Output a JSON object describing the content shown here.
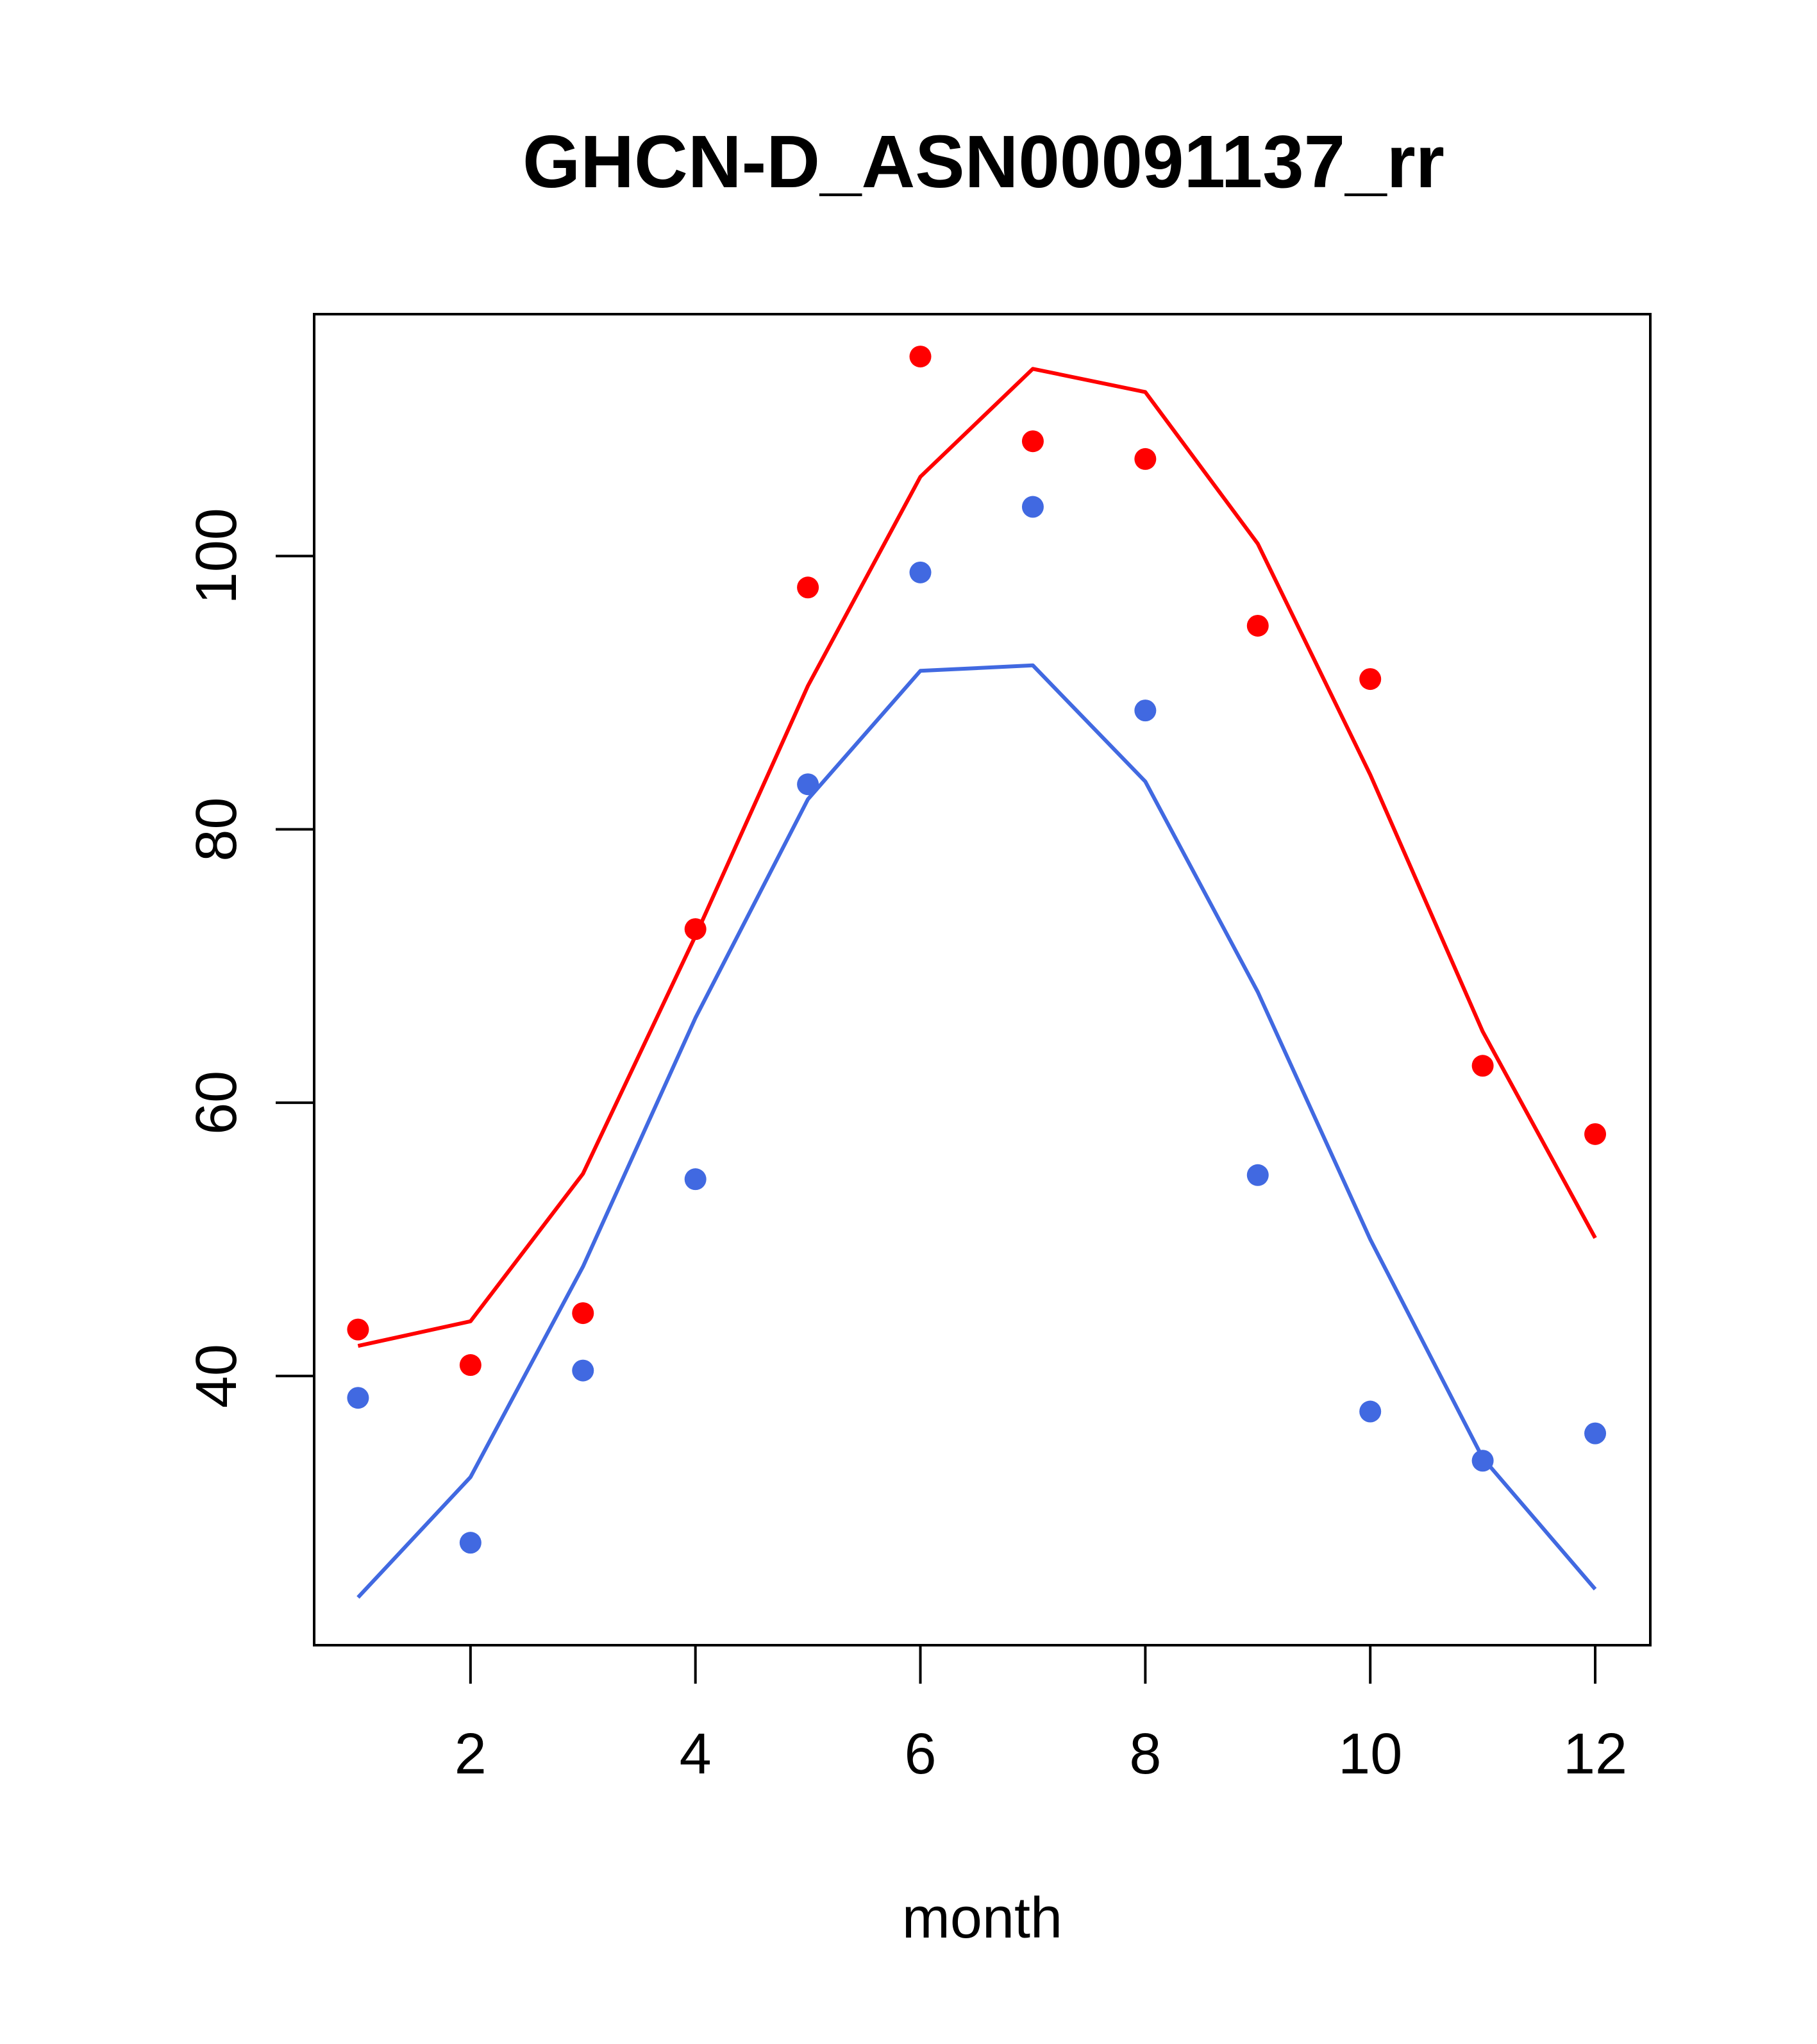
{
  "chart_data": {
    "type": "line",
    "title": "GHCN-D_ASN00091137_rr",
    "xlabel": "month",
    "ylabel": "",
    "xlim": [
      0.61,
      12.49
    ],
    "ylim": [
      20.3,
      117.7
    ],
    "xticks": [
      2,
      4,
      6,
      8,
      10,
      12
    ],
    "yticks": [
      40,
      60,
      80,
      100
    ],
    "x": [
      1,
      2,
      3,
      4,
      5,
      6,
      7,
      8,
      9,
      10,
      11,
      12
    ],
    "series": [
      {
        "color": "#FF0000",
        "line": [
          42.2,
          44.0,
          54.8,
          72.2,
          90.5,
          105.8,
          113.7,
          112.0,
          100.9,
          84.0,
          65.2,
          50.1
        ],
        "points": [
          43.4,
          40.8,
          44.6,
          72.7,
          97.7,
          114.6,
          108.4,
          107.1,
          94.9,
          91.0,
          62.7,
          57.7
        ]
      },
      {
        "color": "#4169E1",
        "line": [
          23.8,
          32.6,
          48.0,
          66.2,
          82.2,
          91.6,
          92.0,
          83.5,
          68.1,
          50.0,
          34.0,
          24.4
        ],
        "points": [
          38.4,
          27.8,
          40.4,
          54.4,
          83.3,
          98.8,
          103.6,
          88.7,
          54.7,
          37.4,
          33.8,
          35.8
        ]
      }
    ]
  }
}
